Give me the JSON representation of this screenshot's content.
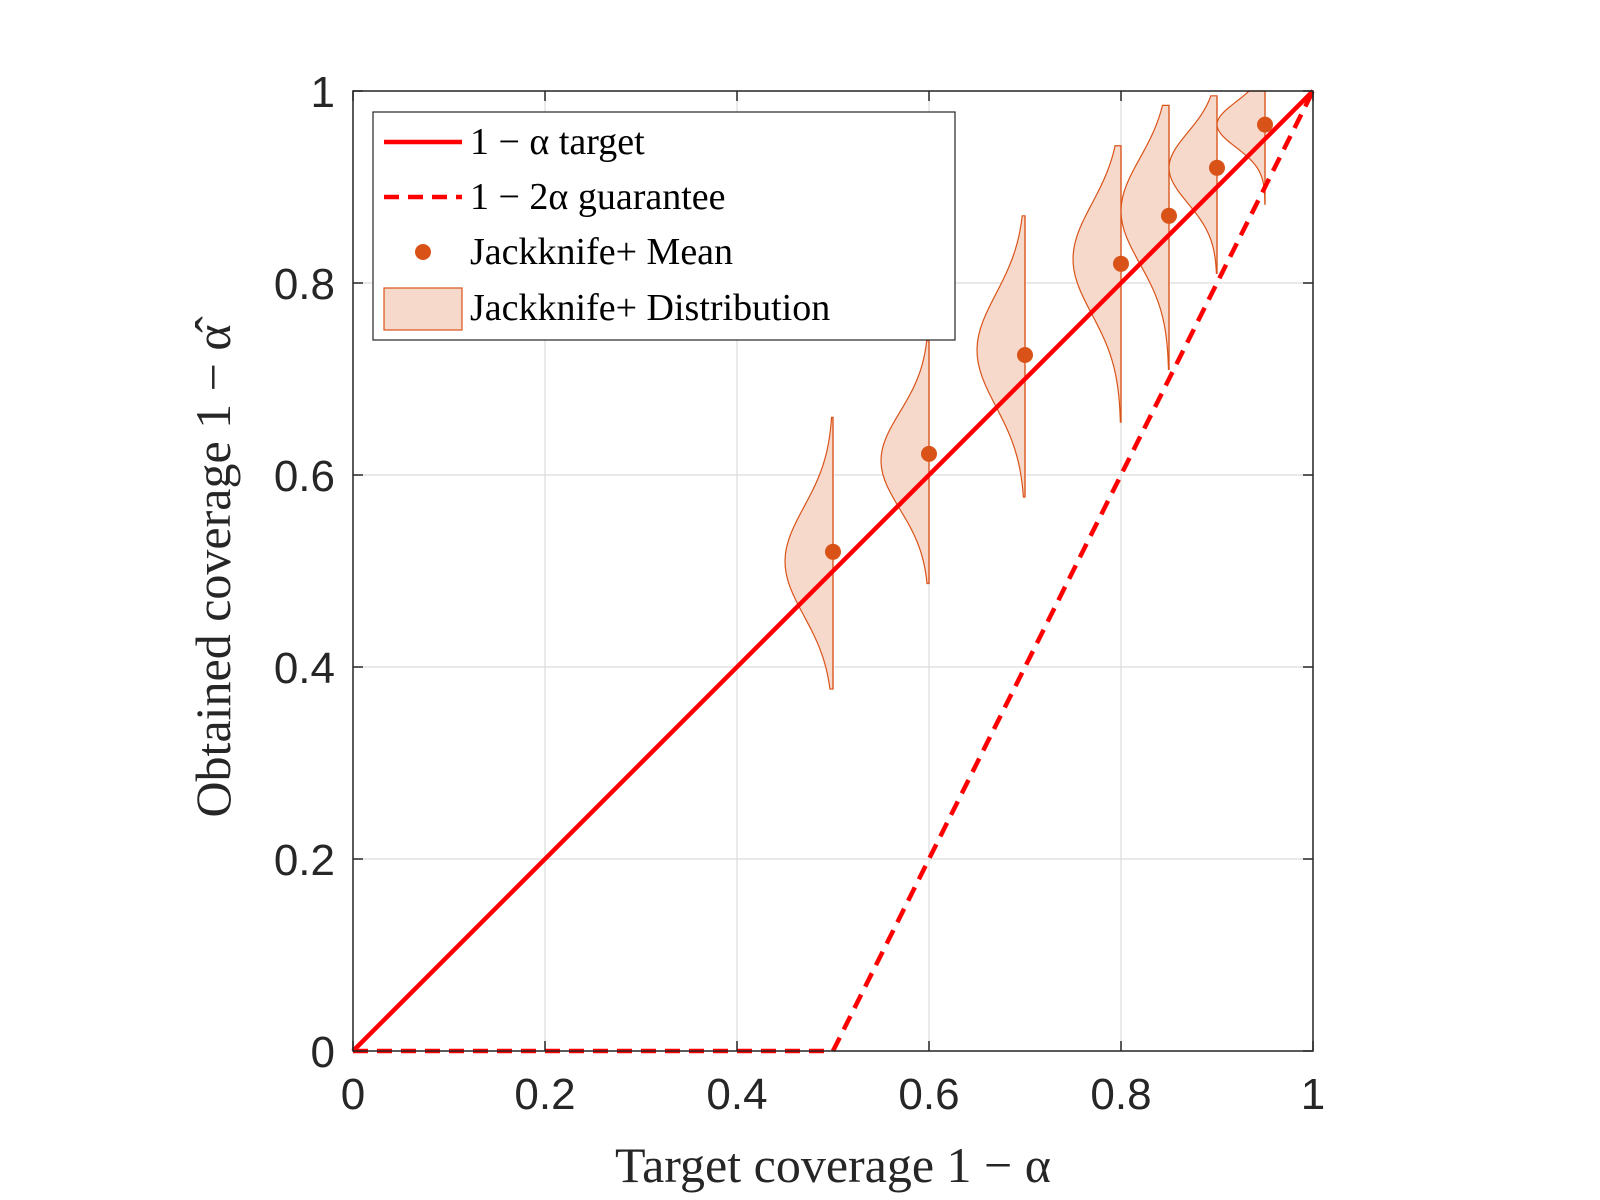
{
  "chart_data": {
    "type": "line",
    "xlabel": "Target coverage 1 − α",
    "ylabel": "Obtained coverage 1 − α̂",
    "xlim": [
      0,
      1
    ],
    "ylim": [
      0,
      1
    ],
    "xticks": [
      0,
      0.2,
      0.4,
      0.6,
      0.8,
      1
    ],
    "yticks": [
      0,
      0.2,
      0.4,
      0.6,
      0.8,
      1
    ],
    "xtick_labels": [
      "0",
      "0.2",
      "0.4",
      "0.6",
      "0.8",
      "1"
    ],
    "ytick_labels": [
      "0",
      "0.2",
      "0.4",
      "0.6",
      "0.8",
      "1"
    ],
    "grid": true,
    "legend_position": "top-left",
    "series": [
      {
        "name": "1 − α target",
        "style": "solid",
        "color": "#ff0000",
        "x": [
          0,
          1
        ],
        "y": [
          0,
          1
        ]
      },
      {
        "name": "1 − 2α guarantee",
        "style": "dashed",
        "color": "#ff0000",
        "x": [
          0,
          0.5,
          1
        ],
        "y": [
          0,
          0,
          1
        ]
      },
      {
        "name": "Jackknife+ Mean",
        "style": "markers",
        "color": "#d95319",
        "x": [
          0.5,
          0.6,
          0.7,
          0.8,
          0.85,
          0.9,
          0.95
        ],
        "y": [
          0.52,
          0.622,
          0.725,
          0.82,
          0.87,
          0.92,
          0.965
        ]
      },
      {
        "name": "Jackknife+ Distribution",
        "style": "half-violin",
        "fill": "#f7d9cc",
        "stroke": "#d95319",
        "violins": [
          {
            "x": 0.5,
            "ymin": 0.377,
            "ymax": 0.66,
            "mode": 0.51,
            "width": 0.05
          },
          {
            "x": 0.6,
            "ymin": 0.487,
            "ymax": 0.74,
            "mode": 0.615,
            "width": 0.05
          },
          {
            "x": 0.7,
            "ymin": 0.577,
            "ymax": 0.87,
            "mode": 0.73,
            "width": 0.05
          },
          {
            "x": 0.8,
            "ymin": 0.655,
            "ymax": 0.943,
            "mode": 0.825,
            "width": 0.05
          },
          {
            "x": 0.85,
            "ymin": 0.71,
            "ymax": 0.985,
            "mode": 0.875,
            "width": 0.05
          },
          {
            "x": 0.9,
            "ymin": 0.81,
            "ymax": 0.995,
            "mode": 0.92,
            "width": 0.05
          },
          {
            "x": 0.95,
            "ymin": 0.882,
            "ymax": 1.0,
            "mode": 0.965,
            "width": 0.05
          }
        ]
      }
    ]
  }
}
